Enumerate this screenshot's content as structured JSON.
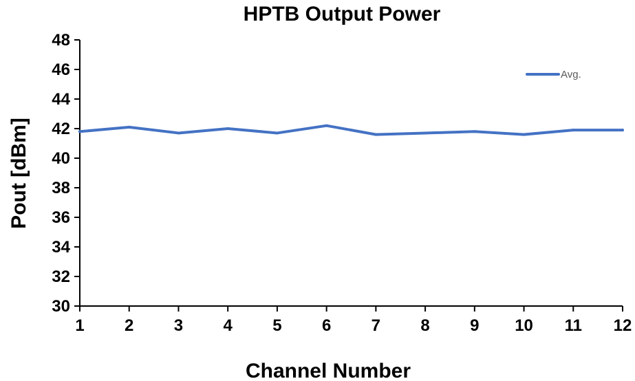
{
  "chart_data": {
    "type": "line",
    "title": "HPTB  Output  Power",
    "xlabel": "Channel Number",
    "ylabel": "Pout  [dBm]",
    "x": [
      1,
      2,
      3,
      4,
      5,
      6,
      7,
      8,
      9,
      10,
      11,
      12
    ],
    "xlim": [
      1,
      12
    ],
    "ylim": [
      30,
      48
    ],
    "yticks": [
      30,
      32,
      34,
      36,
      38,
      40,
      42,
      44,
      46,
      48
    ],
    "grid": false,
    "legend_position": "top-right",
    "series": [
      {
        "name": "Avg.",
        "color": "#4472C4",
        "values": [
          41.8,
          42.1,
          41.7,
          42.0,
          41.7,
          42.2,
          41.6,
          41.7,
          41.8,
          41.6,
          41.9,
          41.9
        ]
      }
    ]
  }
}
